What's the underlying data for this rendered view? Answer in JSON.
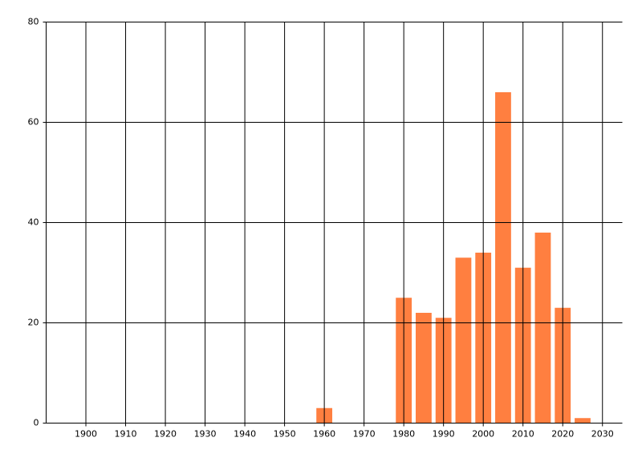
{
  "chart_data": {
    "type": "bar",
    "x": [
      1960,
      1980,
      1985,
      1990,
      1995,
      2000,
      2005,
      2010,
      2015,
      2020,
      2025
    ],
    "values": [
      3,
      25,
      22,
      21,
      33,
      34,
      66,
      31,
      38,
      23,
      1
    ],
    "color": "#ff7f40",
    "xlim": [
      1890,
      2035
    ],
    "xticks": [
      1900,
      1910,
      1920,
      1930,
      1940,
      1950,
      1960,
      1970,
      1980,
      1990,
      2000,
      2010,
      2020,
      2030
    ],
    "ylim": [
      0,
      80
    ],
    "yticks": [
      0,
      20,
      40,
      60,
      80
    ],
    "grid": true
  }
}
